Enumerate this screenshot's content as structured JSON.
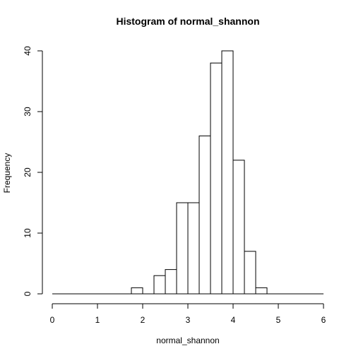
{
  "chart_data": {
    "type": "bar",
    "title": "Histogram of normal_shannon",
    "xlabel": "normal_shannon",
    "ylabel": "Frequency",
    "xlim": [
      0,
      6
    ],
    "ylim": [
      0,
      40
    ],
    "x_ticks": [
      0,
      1,
      2,
      3,
      4,
      5,
      6
    ],
    "y_ticks": [
      0,
      10,
      20,
      30,
      40
    ],
    "bin_width": 0.25,
    "bin_starts": [
      0,
      0.25,
      0.5,
      0.75,
      1,
      1.25,
      1.5,
      1.75,
      2,
      2.25,
      2.5,
      2.75,
      3,
      3.25,
      3.5,
      3.75,
      4,
      4.25,
      4.5,
      4.75,
      5,
      5.25,
      5.5,
      5.75
    ],
    "values": [
      0,
      0,
      0,
      0,
      0,
      0,
      0,
      1,
      0,
      3,
      4,
      15,
      15,
      26,
      38,
      40,
      22,
      7,
      1,
      0,
      0,
      0,
      0,
      0
    ],
    "grid": false,
    "legend": "none",
    "colors": {
      "bar_fill": "#ffffff",
      "bar_stroke": "#000000",
      "axis": "#000000"
    }
  }
}
